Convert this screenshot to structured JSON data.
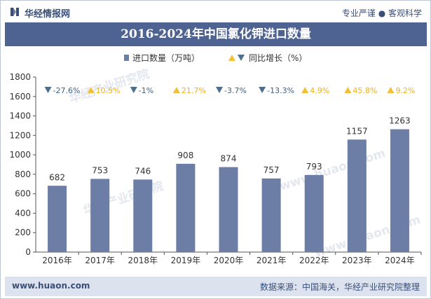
{
  "header": {
    "brand": "华经情报网",
    "tagline": "专业严谨 ● 客观科学"
  },
  "footer": {
    "site": "www.huaon.com",
    "source": "数据来源：中国海关，华经产业研究院整理"
  },
  "watermarks": [
    "华经产业研究院",
    "www.huaon.com"
  ],
  "colors": {
    "bar": "#6c7ea6",
    "title_bg": "#4e6392",
    "up": "#f2c037",
    "down": "#4e6e8e",
    "up_text": "#f0b020",
    "down_text": "#3f5f80"
  },
  "chart_data": {
    "type": "bar",
    "title": "2016-2024年中国氯化钾进口数量",
    "categories": [
      "2016年",
      "2017年",
      "2018年",
      "2019年",
      "2020年",
      "2021年",
      "2022年",
      "2023年",
      "2024年"
    ],
    "series": [
      {
        "name": "进口数量（万吨）",
        "values": [
          682,
          753,
          746,
          908,
          874,
          757,
          793,
          1157,
          1263
        ]
      }
    ],
    "growth": {
      "name": "同比增长（%）",
      "labels": [
        "-27.6%",
        "10.5%",
        "-1%",
        "21.7%",
        "-3.7%",
        "-13.3%",
        "4.9%",
        "45.8%",
        "9.2%"
      ],
      "direction": [
        "down",
        "up",
        "down",
        "up",
        "down",
        "down",
        "up",
        "up",
        "up"
      ]
    },
    "ylim": [
      0,
      1800
    ],
    "yticks": [
      0,
      200,
      400,
      600,
      800,
      1000,
      1200,
      1400,
      1600,
      1800
    ],
    "xlabel": "",
    "ylabel": "",
    "grid": false,
    "legend": "top-center"
  }
}
